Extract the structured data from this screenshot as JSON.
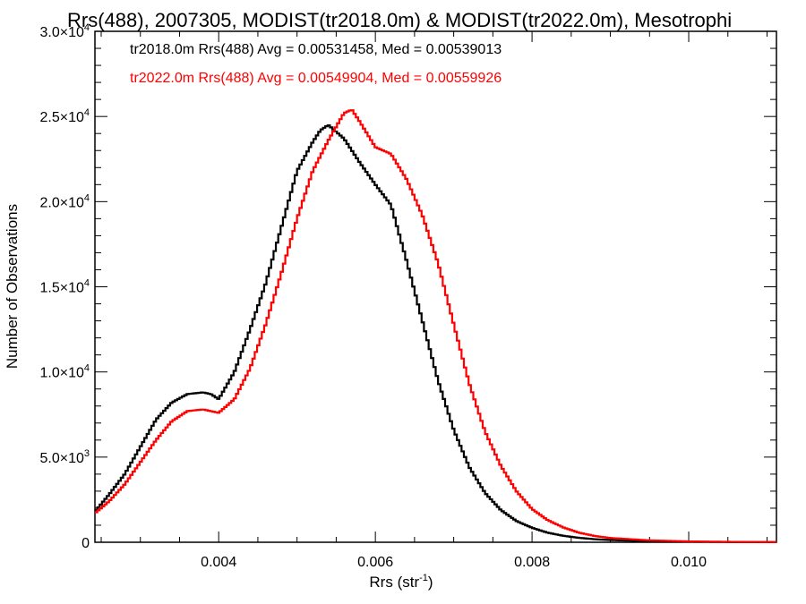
{
  "chart_data": {
    "type": "line",
    "title": "Rrs(488), 2007305, MODIST(tr2018.0m) & MODIST(tr2022.0m), Mesotrophi",
    "xlabel": "Rrs (str",
    "xlabel_sup": "-1",
    "xlabel_end": ")",
    "ylabel": "Number of Observations",
    "xlim": [
      0.00242,
      0.01112
    ],
    "ylim": [
      0,
      30000
    ],
    "x_ticks": [
      {
        "value": 0.004,
        "label": "0.004"
      },
      {
        "value": 0.006,
        "label": "0.006"
      },
      {
        "value": 0.008,
        "label": "0.008"
      },
      {
        "value": 0.01,
        "label": "0.010"
      }
    ],
    "y_ticks": [
      {
        "value": 0,
        "mant": "0",
        "exp": ""
      },
      {
        "value": 5000,
        "mant": "5.0×10",
        "exp": "3"
      },
      {
        "value": 10000,
        "mant": "1.0×10",
        "exp": "4"
      },
      {
        "value": 15000,
        "mant": "1.5×10",
        "exp": "4"
      },
      {
        "value": 20000,
        "mant": "2.0×10",
        "exp": "4"
      },
      {
        "value": 25000,
        "mant": "2.5×10",
        "exp": "4"
      },
      {
        "value": 30000,
        "mant": "3.0×10",
        "exp": "4"
      }
    ],
    "series": [
      {
        "color": "#000000",
        "annotation": "tr2018.0m Rrs(488) Avg = 0.00531458, Med = 0.00539013",
        "x": [
          0.00242,
          0.0026,
          0.0028,
          0.003,
          0.0032,
          0.0034,
          0.0036,
          0.0038,
          0.0039,
          0.004,
          0.0042,
          0.0044,
          0.0046,
          0.0048,
          0.005,
          0.0052,
          0.0053,
          0.0054,
          0.0055,
          0.0056,
          0.0058,
          0.006,
          0.0062,
          0.0064,
          0.0066,
          0.0068,
          0.007,
          0.0072,
          0.0074,
          0.0076,
          0.0078,
          0.008,
          0.0082,
          0.0084,
          0.0086,
          0.0088,
          0.009,
          0.0095,
          0.01,
          0.0105,
          0.01112
        ],
        "y": [
          1800,
          2800,
          4000,
          5600,
          7200,
          8200,
          8700,
          8800,
          8700,
          8400,
          10000,
          12500,
          15200,
          18500,
          21800,
          23500,
          24200,
          24500,
          24100,
          23700,
          22300,
          21000,
          19800,
          16500,
          13000,
          9500,
          6600,
          4400,
          2900,
          1900,
          1250,
          850,
          560,
          380,
          260,
          180,
          130,
          60,
          30,
          15,
          5
        ]
      },
      {
        "color": "#ff0000",
        "annotation": "tr2022.0m Rrs(488) Avg = 0.00549904, Med = 0.00559926",
        "x": [
          0.00242,
          0.0026,
          0.0028,
          0.003,
          0.0032,
          0.0034,
          0.0036,
          0.0038,
          0.004,
          0.0042,
          0.0044,
          0.0046,
          0.0048,
          0.005,
          0.0052,
          0.0054,
          0.0056,
          0.0057,
          0.0058,
          0.006,
          0.0062,
          0.0064,
          0.0066,
          0.0068,
          0.007,
          0.0072,
          0.0074,
          0.0076,
          0.0078,
          0.008,
          0.0082,
          0.0084,
          0.0086,
          0.0088,
          0.009,
          0.0095,
          0.01,
          0.0105,
          0.01112
        ],
        "y": [
          1700,
          2400,
          3400,
          4700,
          6000,
          7100,
          7700,
          7800,
          7600,
          8400,
          10200,
          12800,
          15800,
          19000,
          21800,
          23600,
          25200,
          25400,
          24700,
          23200,
          22800,
          21300,
          19200,
          16400,
          12800,
          9300,
          6500,
          4500,
          3000,
          1950,
          1300,
          870,
          560,
          370,
          250,
          110,
          50,
          25,
          10
        ]
      }
    ]
  }
}
